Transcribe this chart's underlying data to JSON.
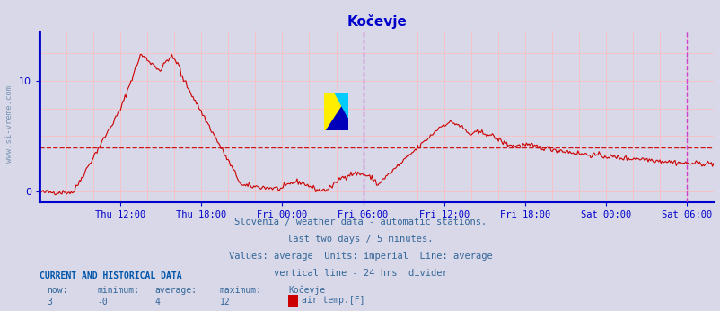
{
  "title": "Kočevje",
  "title_color": "#0000cc",
  "bg_color": "#d8d8e8",
  "plot_bg_color": "#d8d8e8",
  "line_color": "#cc0000",
  "axis_color": "#0000cc",
  "grid_color": "#ffaaaa",
  "avg_line_color": "#cc0000",
  "avg_line_value": 4,
  "vline_color": "#cc44cc",
  "yticks": [
    0,
    10
  ],
  "ymin": -1.0,
  "ymax": 14.5,
  "xlabel_color": "#336699",
  "watermark_text": "www.si-vreme.com",
  "watermark_color": "#336699",
  "footer_color": "#336699",
  "footer_lines": [
    "Slovenia / weather data - automatic stations.",
    "last two days / 5 minutes.",
    "Values: average  Units: imperial  Line: average",
    "vertical line - 24 hrs  divider"
  ],
  "current_data_title": "CURRENT AND HISTORICAL DATA",
  "current_data_labels": [
    "now:",
    "minimum:",
    "average:",
    "maximum:",
    "Kočevje"
  ],
  "current_data_values": [
    "3",
    "-0",
    "4",
    "12"
  ],
  "legend_label": "air temp.[F]",
  "legend_color": "#cc0000",
  "num_points": 577,
  "x_tick_labels": [
    "Thu 12:00",
    "Thu 18:00",
    "Fri 00:00",
    "Fri 06:00",
    "Fri 12:00",
    "Fri 18:00",
    "Sat 00:00",
    "Sat 06:00"
  ],
  "x_tick_hours": [
    6,
    12,
    18,
    24,
    30,
    36,
    42,
    48
  ],
  "total_hours": 50,
  "vline_hour": 24,
  "logo_hour": 22,
  "logo_value": 4.5
}
